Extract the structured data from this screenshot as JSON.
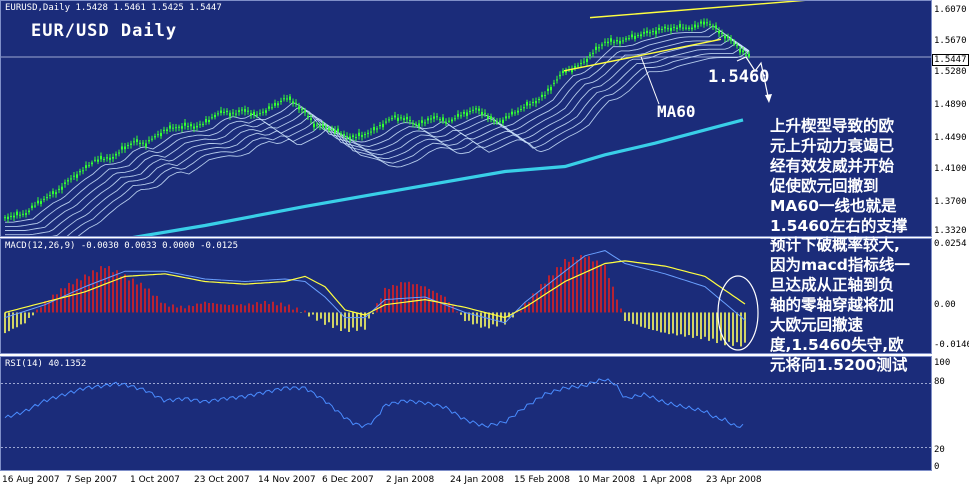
{
  "chart_header": {
    "symbol_line": "EURUSD,Daily  1.5428 1.5461 1.5425 1.5447",
    "big_title": "EUR/USD Daily"
  },
  "annotations": {
    "level_label": "1.5460",
    "ma_label": "MA60"
  },
  "commentary": [
    "上升楔型导致的欧",
    "元上升动力衰竭已",
    "经有效发威并开始",
    "促使欧元回撤到",
    "MA60一线也就是",
    "1.5460左右的支撑",
    "预计下破概率较大,",
    "因为macd指标线一",
    "旦达成从正轴到负",
    "轴的零轴穿越将加",
    "大欧元回撤速",
    "度,1.5460失守,欧",
    "元将向1.5200测试"
  ],
  "price_axis": {
    "ticks": [
      "1.6070",
      "1.5670",
      "1.5447",
      "1.5280",
      "1.4890",
      "1.4490",
      "1.4100",
      "1.3700",
      "1.3320"
    ],
    "current_price": "1.5447"
  },
  "macd_axis": {
    "ticks": [
      "0.0254",
      "0.00",
      "-0.0146"
    ]
  },
  "rsi_axis": {
    "ticks": [
      "100",
      "80",
      "20",
      "0"
    ]
  },
  "indicators": {
    "macd_label": "MACD(12,26,9) -0.0030 0.0033 0.0000 -0.0125",
    "rsi_label": "RSI(14) 40.1352"
  },
  "date_axis": [
    "16 Aug 2007",
    "7 Sep 2007",
    "1 Oct 2007",
    "23 Oct 2007",
    "14 Nov 2007",
    "6 Dec 2007",
    "2 Jan 2008",
    "24 Jan 2008",
    "15 Feb 2008",
    "10 Mar 2008",
    "1 Apr 2008",
    "23 Apr 2008"
  ],
  "colors": {
    "background": "#1b2c7a",
    "candles": "#33ff33",
    "ma_fan": "#cfe6ff",
    "ma60": "#39cfe8",
    "trendline": "#ffff40",
    "macd_signal": "#ffff40",
    "macd_main": "#6aa0ff",
    "macd_hist_pos": "#e02020",
    "macd_hist_neg": "#ffff60",
    "rsi": "#4a8cff"
  },
  "chart_data": [
    {
      "type": "candlestick",
      "title": "EURUSD,Daily",
      "y_ticks": [
        1.607,
        1.567,
        1.528,
        1.489,
        1.449,
        1.41,
        1.37,
        1.332
      ],
      "current_price": 1.5447,
      "ylim": [
        1.327,
        1.612
      ],
      "x_labels": [
        "16 Aug 2007",
        "7 Sep 2007",
        "1 Oct 2007",
        "23 Oct 2007",
        "14 Nov 2007",
        "6 Dec 2007",
        "2 Jan 2008",
        "24 Jan 2008",
        "15 Feb 2008",
        "10 Mar 2008",
        "1 Apr 2008",
        "23 Apr 2008"
      ],
      "close_series": [
        [
          0,
          1.352
        ],
        [
          10,
          1.354
        ],
        [
          20,
          1.356
        ],
        [
          30,
          1.366
        ],
        [
          40,
          1.375
        ],
        [
          50,
          1.381
        ],
        [
          60,
          1.392
        ],
        [
          70,
          1.402
        ],
        [
          80,
          1.41
        ],
        [
          90,
          1.421
        ],
        [
          100,
          1.422
        ],
        [
          110,
          1.425
        ],
        [
          120,
          1.437
        ],
        [
          130,
          1.443
        ],
        [
          140,
          1.44
        ],
        [
          150,
          1.448
        ],
        [
          160,
          1.457
        ],
        [
          170,
          1.46
        ],
        [
          180,
          1.462
        ],
        [
          190,
          1.461
        ],
        [
          200,
          1.465
        ],
        [
          210,
          1.475
        ],
        [
          220,
          1.479
        ],
        [
          230,
          1.476
        ],
        [
          240,
          1.482
        ],
        [
          250,
          1.474
        ],
        [
          260,
          1.48
        ],
        [
          270,
          1.486
        ],
        [
          280,
          1.496
        ],
        [
          290,
          1.49
        ],
        [
          300,
          1.478
        ],
        [
          310,
          1.463
        ],
        [
          320,
          1.46
        ],
        [
          330,
          1.457
        ],
        [
          340,
          1.45
        ],
        [
          350,
          1.448
        ],
        [
          360,
          1.452
        ],
        [
          370,
          1.457
        ],
        [
          380,
          1.466
        ],
        [
          390,
          1.472
        ],
        [
          400,
          1.471
        ],
        [
          410,
          1.464
        ],
        [
          420,
          1.466
        ],
        [
          430,
          1.474
        ],
        [
          440,
          1.466
        ],
        [
          450,
          1.471
        ],
        [
          460,
          1.477
        ],
        [
          470,
          1.482
        ],
        [
          480,
          1.477
        ],
        [
          490,
          1.466
        ],
        [
          500,
          1.47
        ],
        [
          510,
          1.478
        ],
        [
          520,
          1.485
        ],
        [
          530,
          1.491
        ],
        [
          540,
          1.499
        ],
        [
          550,
          1.515
        ],
        [
          560,
          1.528
        ],
        [
          570,
          1.531
        ],
        [
          580,
          1.54
        ],
        [
          590,
          1.552
        ],
        [
          600,
          1.563
        ],
        [
          610,
          1.563
        ],
        [
          620,
          1.565
        ],
        [
          630,
          1.57
        ],
        [
          640,
          1.573
        ],
        [
          650,
          1.576
        ],
        [
          660,
          1.579
        ],
        [
          670,
          1.58
        ],
        [
          680,
          1.58
        ],
        [
          690,
          1.58
        ],
        [
          700,
          1.588
        ],
        [
          710,
          1.58
        ],
        [
          720,
          1.57
        ],
        [
          730,
          1.561
        ],
        [
          740,
          1.548
        ],
        [
          745,
          1.5447
        ]
      ],
      "ma60_series": [
        [
          0,
          1.314
        ],
        [
          100,
          1.322
        ],
        [
          200,
          1.342
        ],
        [
          300,
          1.365
        ],
        [
          400,
          1.386
        ],
        [
          500,
          1.407
        ],
        [
          560,
          1.413
        ],
        [
          600,
          1.427
        ],
        [
          650,
          1.441
        ],
        [
          700,
          1.457
        ],
        [
          738,
          1.469
        ]
      ]
    },
    {
      "type": "macd",
      "title": "MACD(12,26,9)",
      "values_last": {
        "main": -0.003,
        "signal": 0.0033,
        "histogram": -0.0125
      },
      "y_ticks": [
        0.0254,
        0.0,
        -0.0146
      ],
      "histogram_series": [
        [
          0,
          -0.008
        ],
        [
          20,
          -0.004
        ],
        [
          40,
          0.004
        ],
        [
          60,
          0.01
        ],
        [
          80,
          0.014
        ],
        [
          100,
          0.018
        ],
        [
          120,
          0.014
        ],
        [
          140,
          0.01
        ],
        [
          160,
          0.003
        ],
        [
          180,
          0.002
        ],
        [
          200,
          0.004
        ],
        [
          220,
          0.003
        ],
        [
          240,
          0.003
        ],
        [
          260,
          0.004
        ],
        [
          280,
          0.003
        ],
        [
          300,
          0.0
        ],
        [
          320,
          -0.004
        ],
        [
          340,
          -0.007
        ],
        [
          360,
          -0.006
        ],
        [
          380,
          0.009
        ],
        [
          400,
          0.012
        ],
        [
          420,
          0.01
        ],
        [
          440,
          0.006
        ],
        [
          460,
          -0.003
        ],
        [
          480,
          -0.006
        ],
        [
          500,
          -0.004
        ],
        [
          520,
          0.003
        ],
        [
          540,
          0.012
        ],
        [
          560,
          0.02
        ],
        [
          580,
          0.022
        ],
        [
          600,
          0.018
        ],
        [
          620,
          -0.003
        ],
        [
          640,
          -0.006
        ],
        [
          660,
          -0.008
        ],
        [
          680,
          -0.009
        ],
        [
          700,
          -0.01
        ],
        [
          720,
          -0.012
        ],
        [
          740,
          -0.0125
        ]
      ],
      "signal_series": [
        [
          0,
          0.0
        ],
        [
          40,
          0.004
        ],
        [
          80,
          0.008
        ],
        [
          120,
          0.014
        ],
        [
          160,
          0.015
        ],
        [
          200,
          0.012
        ],
        [
          240,
          0.011
        ],
        [
          280,
          0.012
        ],
        [
          300,
          0.014
        ],
        [
          320,
          0.01
        ],
        [
          340,
          0.001
        ],
        [
          360,
          -0.001
        ],
        [
          380,
          0.003
        ],
        [
          420,
          0.005
        ],
        [
          460,
          0.002
        ],
        [
          500,
          -0.002
        ],
        [
          520,
          0.002
        ],
        [
          560,
          0.012
        ],
        [
          600,
          0.019
        ],
        [
          620,
          0.02
        ],
        [
          660,
          0.018
        ],
        [
          700,
          0.014
        ],
        [
          740,
          0.0033
        ]
      ],
      "main_series": [
        [
          0,
          -0.002
        ],
        [
          40,
          0.003
        ],
        [
          80,
          0.01
        ],
        [
          120,
          0.016
        ],
        [
          160,
          0.016
        ],
        [
          200,
          0.013
        ],
        [
          240,
          0.012
        ],
        [
          280,
          0.013
        ],
        [
          300,
          0.012
        ],
        [
          320,
          0.006
        ],
        [
          340,
          -0.002
        ],
        [
          360,
          -0.002
        ],
        [
          380,
          0.005
        ],
        [
          420,
          0.006
        ],
        [
          460,
          0.0
        ],
        [
          500,
          -0.004
        ],
        [
          520,
          0.004
        ],
        [
          560,
          0.016
        ],
        [
          580,
          0.022
        ],
        [
          600,
          0.024
        ],
        [
          620,
          0.019
        ],
        [
          660,
          0.015
        ],
        [
          700,
          0.01
        ],
        [
          740,
          -0.003
        ]
      ]
    },
    {
      "type": "line",
      "title": "RSI(14)",
      "value_last": 40.1352,
      "y_ticks": [
        100,
        80,
        20,
        0
      ],
      "ylim": [
        0,
        100
      ],
      "rsi_series": [
        [
          0,
          48
        ],
        [
          20,
          54
        ],
        [
          40,
          64
        ],
        [
          60,
          70
        ],
        [
          80,
          76
        ],
        [
          100,
          78
        ],
        [
          110,
          80
        ],
        [
          120,
          79
        ],
        [
          140,
          74
        ],
        [
          160,
          64
        ],
        [
          180,
          66
        ],
        [
          200,
          63
        ],
        [
          220,
          66
        ],
        [
          240,
          68
        ],
        [
          260,
          72
        ],
        [
          280,
          76
        ],
        [
          300,
          76
        ],
        [
          320,
          64
        ],
        [
          340,
          48
        ],
        [
          350,
          42
        ],
        [
          360,
          40
        ],
        [
          370,
          46
        ],
        [
          380,
          60
        ],
        [
          400,
          64
        ],
        [
          420,
          62
        ],
        [
          440,
          58
        ],
        [
          460,
          46
        ],
        [
          480,
          40
        ],
        [
          500,
          44
        ],
        [
          520,
          58
        ],
        [
          540,
          70
        ],
        [
          560,
          76
        ],
        [
          580,
          78
        ],
        [
          590,
          82
        ],
        [
          600,
          84
        ],
        [
          610,
          80
        ],
        [
          620,
          66
        ],
        [
          640,
          70
        ],
        [
          660,
          62
        ],
        [
          680,
          58
        ],
        [
          700,
          54
        ],
        [
          710,
          48
        ],
        [
          720,
          46
        ],
        [
          730,
          40
        ],
        [
          740,
          40.1
        ]
      ]
    }
  ]
}
